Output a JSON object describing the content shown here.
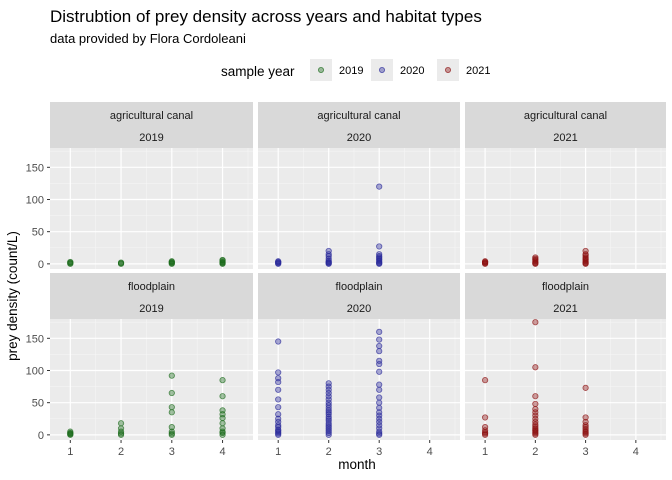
{
  "chart_data": {
    "type": "scatter",
    "title": "Distrubtion of prey density across years and habitat types",
    "subtitle": "data provided by Flora Cordoleani",
    "xlabel": "month",
    "ylabel": "prey density (count/L)",
    "xlim": [
      0.6,
      4.6
    ],
    "ylim": [
      -8,
      180
    ],
    "x_ticks": [
      1,
      2,
      3,
      4
    ],
    "y_ticks": [
      0,
      50,
      100,
      150
    ],
    "grid": true,
    "legend": {
      "title": "sample year",
      "position": "top",
      "entries": [
        {
          "label": "2019",
          "color": "#1b6b1b"
        },
        {
          "label": "2020",
          "color": "#2a2a9a"
        },
        {
          "label": "2021",
          "color": "#8b1010"
        }
      ]
    },
    "colors": {
      "2019": "#1b6b1b",
      "2020": "#2a2a9a",
      "2021": "#8b1010"
    },
    "facets": [
      {
        "habitat": "agricultural canal",
        "year": "2019",
        "points": [
          [
            1,
            0
          ],
          [
            1,
            1
          ],
          [
            1,
            2
          ],
          [
            1,
            3
          ],
          [
            2,
            0
          ],
          [
            2,
            1
          ],
          [
            2,
            2
          ],
          [
            3,
            0
          ],
          [
            3,
            1
          ],
          [
            3,
            2
          ],
          [
            3,
            3
          ],
          [
            3,
            4
          ],
          [
            4,
            0
          ],
          [
            4,
            1
          ],
          [
            4,
            2
          ],
          [
            4,
            3
          ],
          [
            4,
            5
          ],
          [
            4,
            6
          ]
        ]
      },
      {
        "habitat": "agricultural canal",
        "year": "2020",
        "points": [
          [
            1,
            0
          ],
          [
            1,
            1
          ],
          [
            1,
            2
          ],
          [
            1,
            3
          ],
          [
            1,
            4
          ],
          [
            2,
            0
          ],
          [
            2,
            1
          ],
          [
            2,
            2
          ],
          [
            2,
            3
          ],
          [
            2,
            5
          ],
          [
            2,
            8
          ],
          [
            2,
            12
          ],
          [
            2,
            15
          ],
          [
            2,
            20
          ],
          [
            3,
            0
          ],
          [
            3,
            1
          ],
          [
            3,
            2
          ],
          [
            3,
            4
          ],
          [
            3,
            6
          ],
          [
            3,
            8
          ],
          [
            3,
            10
          ],
          [
            3,
            12
          ],
          [
            3,
            15
          ],
          [
            3,
            27
          ],
          [
            3,
            120
          ]
        ]
      },
      {
        "habitat": "agricultural canal",
        "year": "2021",
        "points": [
          [
            1,
            0
          ],
          [
            1,
            1
          ],
          [
            1,
            2
          ],
          [
            1,
            3
          ],
          [
            1,
            4
          ],
          [
            2,
            0
          ],
          [
            2,
            1
          ],
          [
            2,
            2
          ],
          [
            2,
            4
          ],
          [
            2,
            6
          ],
          [
            2,
            8
          ],
          [
            2,
            10
          ],
          [
            3,
            0
          ],
          [
            3,
            1
          ],
          [
            3,
            2
          ],
          [
            3,
            4
          ],
          [
            3,
            6
          ],
          [
            3,
            8
          ],
          [
            3,
            10
          ],
          [
            3,
            13
          ],
          [
            3,
            15
          ],
          [
            3,
            20
          ]
        ]
      },
      {
        "habitat": "floodplain",
        "year": "2019",
        "points": [
          [
            1,
            0
          ],
          [
            1,
            1
          ],
          [
            1,
            2
          ],
          [
            1,
            3
          ],
          [
            1,
            5
          ],
          [
            2,
            0
          ],
          [
            2,
            2
          ],
          [
            2,
            5
          ],
          [
            2,
            10
          ],
          [
            2,
            18
          ],
          [
            3,
            0
          ],
          [
            3,
            2
          ],
          [
            3,
            5
          ],
          [
            3,
            12
          ],
          [
            3,
            35
          ],
          [
            3,
            43
          ],
          [
            3,
            65
          ],
          [
            3,
            92
          ],
          [
            4,
            0
          ],
          [
            4,
            3
          ],
          [
            4,
            5
          ],
          [
            4,
            10
          ],
          [
            4,
            18
          ],
          [
            4,
            26
          ],
          [
            4,
            32
          ],
          [
            4,
            38
          ],
          [
            4,
            60
          ],
          [
            4,
            85
          ]
        ]
      },
      {
        "habitat": "floodplain",
        "year": "2020",
        "points": [
          [
            1,
            0
          ],
          [
            1,
            2
          ],
          [
            1,
            4
          ],
          [
            1,
            6
          ],
          [
            1,
            8
          ],
          [
            1,
            12
          ],
          [
            1,
            15
          ],
          [
            1,
            20
          ],
          [
            1,
            25
          ],
          [
            1,
            32
          ],
          [
            1,
            43
          ],
          [
            1,
            55
          ],
          [
            1,
            70
          ],
          [
            1,
            82
          ],
          [
            1,
            88
          ],
          [
            1,
            97
          ],
          [
            1,
            145
          ],
          [
            2,
            0
          ],
          [
            2,
            3
          ],
          [
            2,
            6
          ],
          [
            2,
            9
          ],
          [
            2,
            12
          ],
          [
            2,
            15
          ],
          [
            2,
            18
          ],
          [
            2,
            22
          ],
          [
            2,
            25
          ],
          [
            2,
            28
          ],
          [
            2,
            32
          ],
          [
            2,
            35
          ],
          [
            2,
            38
          ],
          [
            2,
            42
          ],
          [
            2,
            46
          ],
          [
            2,
            50
          ],
          [
            2,
            55
          ],
          [
            2,
            60
          ],
          [
            2,
            65
          ],
          [
            2,
            70
          ],
          [
            2,
            75
          ],
          [
            2,
            80
          ],
          [
            3,
            0
          ],
          [
            3,
            2
          ],
          [
            3,
            5
          ],
          [
            3,
            10
          ],
          [
            3,
            15
          ],
          [
            3,
            20
          ],
          [
            3,
            25
          ],
          [
            3,
            30
          ],
          [
            3,
            35
          ],
          [
            3,
            42
          ],
          [
            3,
            50
          ],
          [
            3,
            58
          ],
          [
            3,
            70
          ],
          [
            3,
            78
          ],
          [
            3,
            98
          ],
          [
            3,
            110
          ],
          [
            3,
            115
          ],
          [
            3,
            130
          ],
          [
            3,
            138
          ],
          [
            3,
            148
          ],
          [
            3,
            160
          ]
        ]
      },
      {
        "habitat": "floodplain",
        "year": "2021",
        "points": [
          [
            1,
            0
          ],
          [
            1,
            2
          ],
          [
            1,
            4
          ],
          [
            1,
            7
          ],
          [
            1,
            12
          ],
          [
            1,
            27
          ],
          [
            1,
            85
          ],
          [
            2,
            0
          ],
          [
            2,
            2
          ],
          [
            2,
            4
          ],
          [
            2,
            6
          ],
          [
            2,
            8
          ],
          [
            2,
            10
          ],
          [
            2,
            13
          ],
          [
            2,
            16
          ],
          [
            2,
            20
          ],
          [
            2,
            25
          ],
          [
            2,
            30
          ],
          [
            2,
            35
          ],
          [
            2,
            40
          ],
          [
            2,
            48
          ],
          [
            2,
            60
          ],
          [
            2,
            105
          ],
          [
            2,
            175
          ],
          [
            3,
            0
          ],
          [
            3,
            2
          ],
          [
            3,
            4
          ],
          [
            3,
            6
          ],
          [
            3,
            9
          ],
          [
            3,
            12
          ],
          [
            3,
            15
          ],
          [
            3,
            20
          ],
          [
            3,
            27
          ],
          [
            3,
            73
          ]
        ]
      }
    ]
  }
}
